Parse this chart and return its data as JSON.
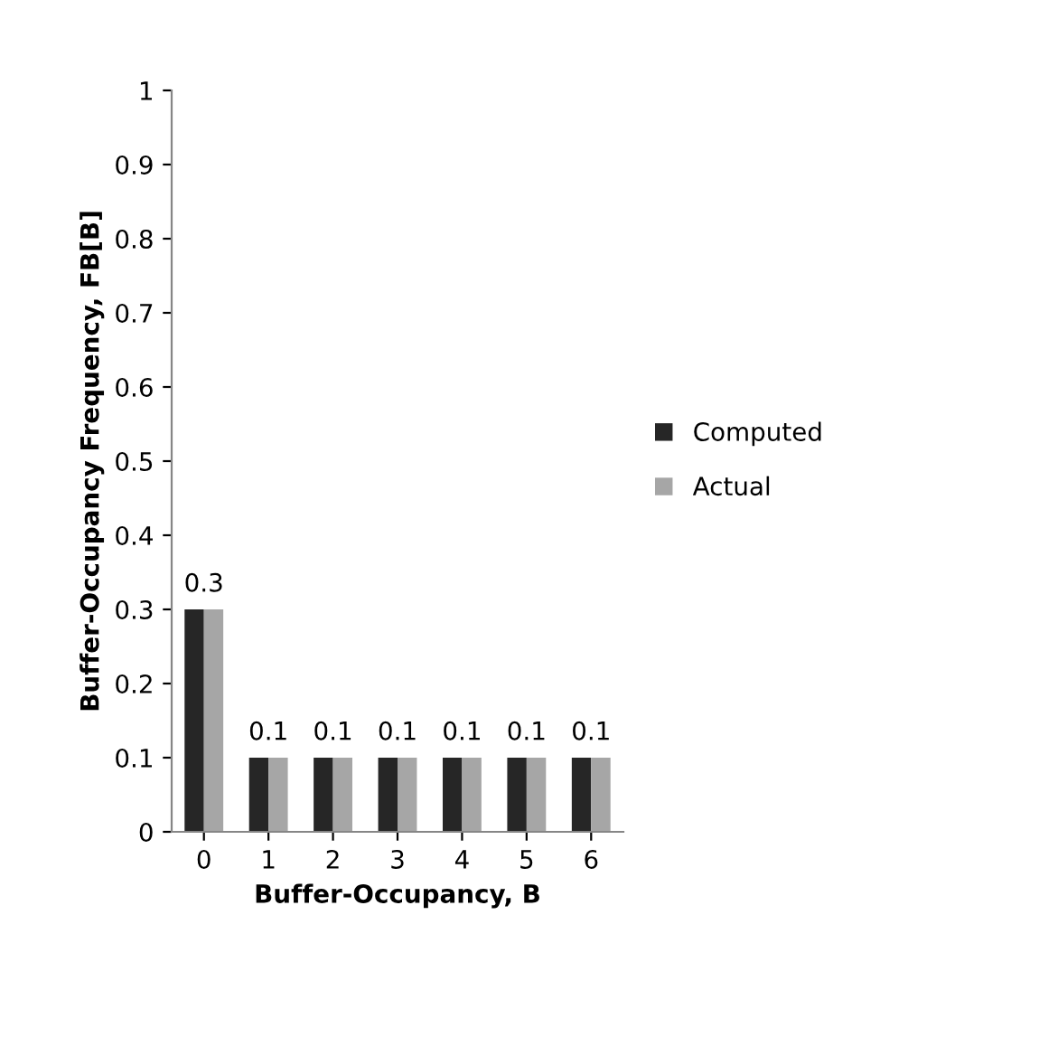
{
  "chart_data": {
    "type": "bar",
    "xlabel": "Buffer-Occupancy, B",
    "ylabel": "Buffer-Occupancy Frequency, FB[B]",
    "categories": [
      "0",
      "1",
      "2",
      "3",
      "4",
      "5",
      "6"
    ],
    "series": [
      {
        "name": "Computed",
        "color": "#262626",
        "values": [
          0.3,
          0.1,
          0.1,
          0.1,
          0.1,
          0.1,
          0.1
        ],
        "value_labels": [
          "0.3",
          "0.1",
          "0.1",
          "0.1",
          "0.1",
          "0.1",
          "0.1"
        ]
      },
      {
        "name": "Actual",
        "color": "#a6a6a6",
        "values": [
          0.3,
          0.1,
          0.1,
          0.1,
          0.1,
          0.1,
          0.1
        ]
      }
    ],
    "ylim": [
      0,
      1
    ],
    "yticks": [
      0,
      0.1,
      0.2,
      0.3,
      0.4,
      0.5,
      0.6,
      0.7,
      0.8,
      0.9,
      1
    ],
    "grid": false,
    "legend": "right"
  }
}
